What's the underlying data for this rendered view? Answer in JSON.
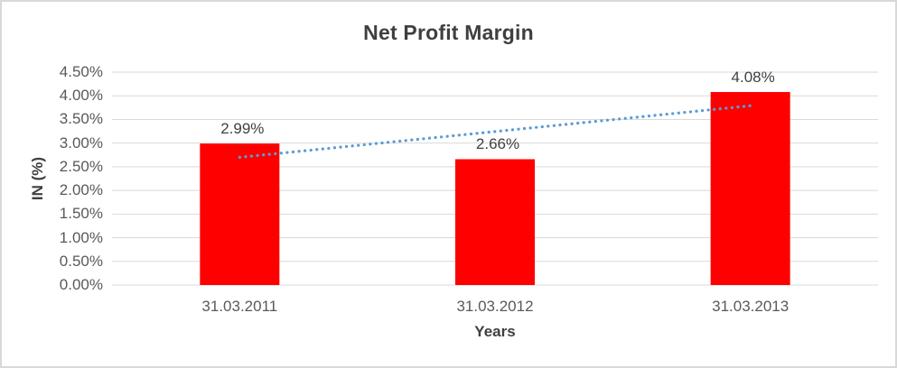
{
  "chart_data": {
    "type": "bar",
    "title": "Net Profit Margin",
    "xlabel": "Years",
    "ylabel": "IN (%)",
    "categories": [
      "31.03.2011",
      "31.03.2012",
      "31.03.2013"
    ],
    "values": [
      2.99,
      2.66,
      4.08
    ],
    "data_labels": [
      "2.99%",
      "2.66%",
      "4.08%"
    ],
    "ylim": [
      0,
      4.5
    ],
    "ytick_step": 0.5,
    "ytick_labels": [
      "0.00%",
      "0.50%",
      "1.00%",
      "1.50%",
      "2.00%",
      "2.50%",
      "3.00%",
      "3.50%",
      "4.00%",
      "4.50%"
    ],
    "grid": true,
    "legend": "none",
    "bar_color": "#FF0000",
    "gridline_color": "#D9D9D9",
    "tick_text_color": "#595959",
    "label_text_color": "#404040",
    "frame_border_color": "#D9D9D9",
    "trendline": {
      "type": "linear",
      "style": "dotted",
      "color": "#5B9BD5",
      "endpoint_values": [
        2.7,
        3.79
      ]
    }
  }
}
